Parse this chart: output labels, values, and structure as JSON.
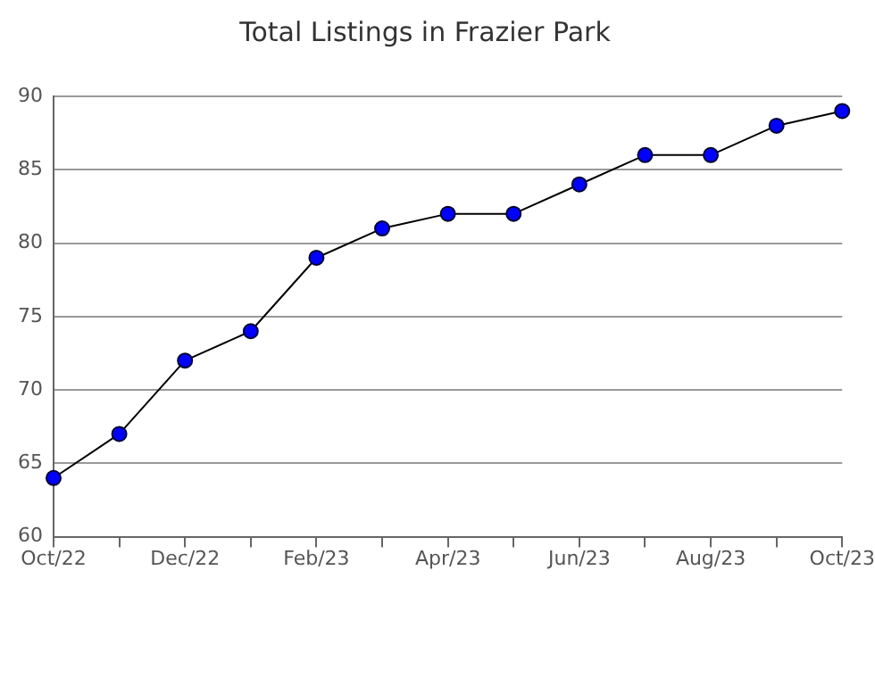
{
  "chart_data": {
    "type": "line",
    "title": "Total Listings in Frazier Park",
    "categories": [
      "Oct/22",
      null,
      "Dec/22",
      null,
      "Feb/23",
      null,
      "Apr/23",
      null,
      "Jun/23",
      null,
      "Aug/23",
      null,
      "Oct/23"
    ],
    "series": [
      {
        "color": "#0000ff",
        "values": [
          64,
          67,
          72,
          74,
          79,
          81,
          82,
          82,
          84,
          86,
          86,
          88,
          89
        ]
      }
    ],
    "ylim": [
      60,
      90
    ],
    "yticks": [
      60,
      65,
      70,
      75,
      80,
      85,
      90
    ],
    "grid": "y",
    "legend": false,
    "marker": "circle",
    "line_style": "solid"
  }
}
